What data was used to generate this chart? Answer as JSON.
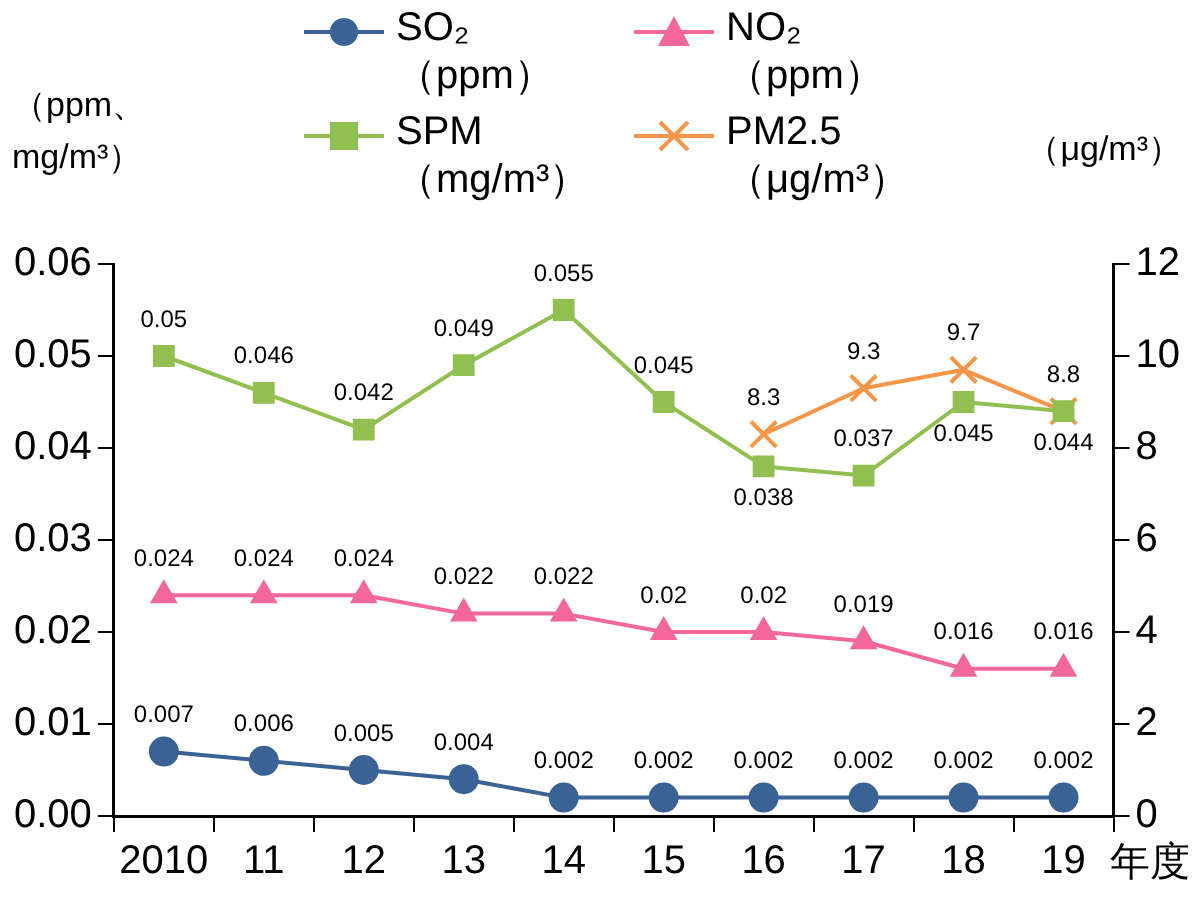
{
  "chart_data": {
    "type": "line",
    "categories": [
      "2010",
      "11",
      "12",
      "13",
      "14",
      "15",
      "16",
      "17",
      "18",
      "19"
    ],
    "xlabel": "年度",
    "ylabel": "（ppm、mg/m³）",
    "y2label": "（μg/m³）",
    "series": [
      {
        "name": "SO₂（ppm）",
        "color": "#3a6295",
        "marker": "circle",
        "values": [
          0.007,
          0.006,
          0.005,
          0.004,
          0.002,
          0.002,
          0.002,
          0.002,
          0.002,
          0.002
        ]
      },
      {
        "name": "NO₂（ppm）",
        "color": "#f4679b",
        "marker": "triangle",
        "values": [
          0.024,
          0.024,
          0.024,
          0.022,
          0.022,
          0.02,
          0.02,
          0.019,
          0.016,
          0.016
        ]
      },
      {
        "name": "SPM（mg/m³）",
        "color": "#92c050",
        "marker": "square",
        "values": [
          0.05,
          0.046,
          0.042,
          0.049,
          0.055,
          0.045,
          0.038,
          0.037,
          0.045,
          0.044
        ]
      },
      {
        "name": "PM2.5（μg/m³）",
        "color": "#f79646",
        "marker": "cross",
        "axis": "y2",
        "values": [
          null,
          null,
          null,
          null,
          null,
          null,
          8.3,
          9.3,
          9.7,
          8.8
        ]
      }
    ],
    "ylim": [
      0,
      0.06
    ],
    "yticks": [
      {
        "value": 0,
        "label": "0.00"
      },
      {
        "value": 0.01,
        "label": "0.01"
      },
      {
        "value": 0.02,
        "label": "0.02"
      },
      {
        "value": 0.03,
        "label": "0.03"
      },
      {
        "value": 0.04,
        "label": "0.04"
      },
      {
        "value": 0.05,
        "label": "0.05"
      },
      {
        "value": 0.06,
        "label": "0.06"
      }
    ],
    "y2lim": [
      0,
      12
    ],
    "y2ticks": [
      0,
      2,
      4,
      6,
      8,
      10,
      12
    ],
    "data_labels": true,
    "grid": false,
    "legend": "top",
    "line_style": "solid"
  }
}
